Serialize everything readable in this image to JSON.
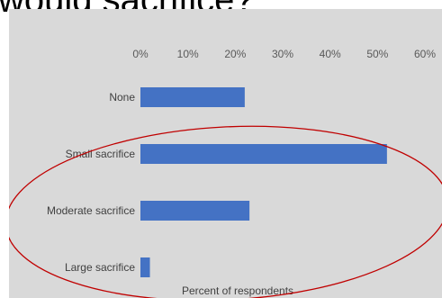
{
  "slide": {
    "title": "would sacrifice?"
  },
  "chart_data": {
    "type": "bar",
    "orientation": "horizontal",
    "categories": [
      "None",
      "Small sacrifice",
      "Moderate sacrifice",
      "Large sacrifice"
    ],
    "values": [
      22,
      52,
      23,
      2
    ],
    "xlim": [
      0,
      60
    ],
    "xticks": [
      "0%",
      "10%",
      "20%",
      "30%",
      "40%",
      "50%",
      "60%"
    ],
    "xtick_values": [
      0,
      10,
      20,
      30,
      40,
      50,
      60
    ],
    "xlabel": "Percent of respondents",
    "tick_position": "top",
    "grid": false,
    "legend": "none",
    "bar_color": "#4472c4",
    "plot_background": "#d9d9d9",
    "annotation": {
      "type": "ellipse",
      "color": "#c00000",
      "encloses": [
        "Small sacrifice",
        "Moderate sacrifice",
        "Large sacrifice"
      ]
    }
  }
}
